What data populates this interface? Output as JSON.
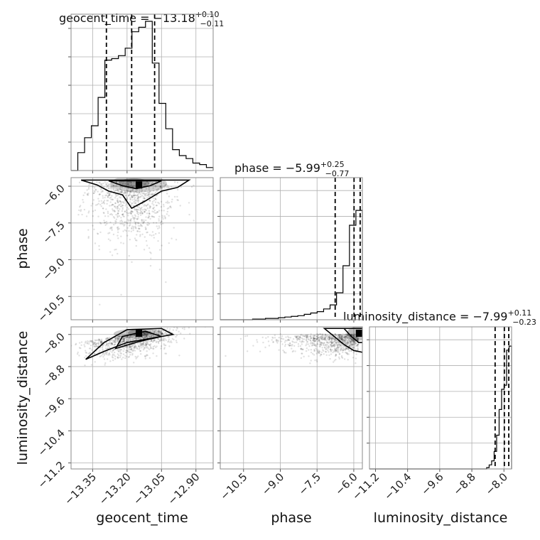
{
  "chart_data": {
    "type": "corner",
    "parameters": [
      "geocent_time",
      "phase",
      "luminosity_distance"
    ],
    "axis_labels": [
      "geocent_time",
      "phase",
      "luminosity_distance"
    ],
    "titles": [
      {
        "param": "geocent_time",
        "text": "geocent_time = −13.18",
        "plus": "+0.10",
        "minus": "−0.11"
      },
      {
        "param": "phase",
        "text": "phase = −5.99",
        "plus": "+0.25",
        "minus": "−0.77"
      },
      {
        "param": "luminosity_distance",
        "text": "luminosity_distance = −7.99",
        "plus": "+0.11",
        "minus": "−0.23"
      }
    ],
    "ranges": {
      "geocent_time": [
        -13.444,
        -12.825
      ],
      "phase": [
        -11.45,
        -5.65
      ],
      "luminosity_distance": [
        -11.35,
        -7.81
      ]
    },
    "ticks": {
      "geocent_time": [
        -13.35,
        -13.2,
        -13.05,
        -12.9
      ],
      "phase": [
        -10.5,
        -9.0,
        -7.5,
        -6.0
      ],
      "luminosity_distance": [
        -11.2,
        -10.4,
        -9.6,
        -8.8,
        -8.0
      ]
    },
    "tick_labels": {
      "geocent_time": [
        "−13.35",
        "−13.20",
        "−13.05",
        "−12.90"
      ],
      "phase": [
        "−10.5",
        "−9.0",
        "−7.5",
        "−6.0"
      ],
      "luminosity_distance": [
        "−11.2",
        "−10.4",
        "−9.6",
        "−8.8",
        "−8.0"
      ]
    },
    "quantiles": {
      "geocent_time": [
        -13.29,
        -13.18,
        -13.08
      ],
      "phase": [
        -6.76,
        -5.99,
        -5.74
      ],
      "luminosity_distance": [
        -8.22,
        -7.99,
        -7.88
      ]
    },
    "histograms": {
      "geocent_time": [
        0.0,
        0.12,
        0.22,
        0.3,
        0.49,
        0.74,
        0.75,
        0.77,
        0.82,
        0.93,
        0.96,
        1.0,
        0.72,
        0.45,
        0.28,
        0.14,
        0.1,
        0.08,
        0.05,
        0.04,
        0.02
      ],
      "phase": [
        0.0,
        0.0,
        0.0,
        0.0,
        0.0,
        0.005,
        0.005,
        0.01,
        0.01,
        0.015,
        0.02,
        0.025,
        0.03,
        0.04,
        0.05,
        0.06,
        0.08,
        0.11,
        0.2,
        0.4,
        0.7,
        0.81
      ],
      "luminosity_distance": [
        0.0,
        0.0,
        0.0,
        0.0,
        0.0,
        0.0,
        0.0,
        0.0,
        0.0,
        0.0,
        0.0,
        0.0,
        0.0,
        0.0,
        0.0,
        0.0,
        0.0,
        0.0,
        0.0,
        0.0,
        0.0,
        0.0,
        0.0,
        0.0,
        0.0,
        0.0,
        0.0,
        0.0,
        0.0,
        0.0,
        0.0,
        0.0,
        0.0,
        0.0,
        0.0,
        0.0,
        0.0,
        0.0,
        0.0,
        0.0,
        0.0,
        0.0,
        0.0,
        0.0,
        0.0,
        0.0,
        0.0,
        0.01,
        0.03,
        0.06,
        0.13,
        0.25,
        0.44,
        0.59,
        0.62,
        0.88,
        0.91
      ]
    },
    "grid": true
  }
}
